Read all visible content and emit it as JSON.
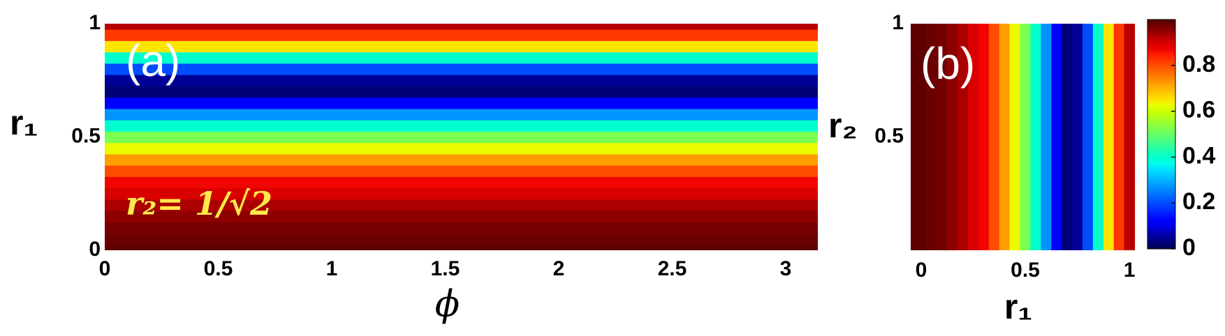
{
  "chart_data": [
    {
      "type": "heatmap",
      "x_label": "ϕ",
      "y_label": "r₁",
      "annotations": [
        "(a)",
        "r₂= 1/√2"
      ],
      "xlim": [
        0,
        3.1416
      ],
      "xticks": [
        0,
        0.5,
        1,
        1.5,
        2,
        2.5,
        3
      ],
      "ylim": [
        0,
        1
      ],
      "yticks": [
        0,
        0.5,
        1
      ],
      "y": [
        0,
        0.05,
        0.1,
        0.15,
        0.2,
        0.25,
        0.3,
        0.35,
        0.4,
        0.45,
        0.5,
        0.55,
        0.6,
        0.65,
        0.7,
        0.75,
        0.8,
        0.85,
        0.9,
        0.95,
        1
      ],
      "values": [
        0.99,
        0.98,
        0.97,
        0.95,
        0.93,
        0.9,
        0.87,
        0.8,
        0.72,
        0.63,
        0.52,
        0.4,
        0.27,
        0.12,
        0.03,
        0.05,
        0.2,
        0.4,
        0.65,
        0.82,
        0.92
      ],
      "colormap": "jet"
    },
    {
      "type": "heatmap",
      "x_label": "r₁",
      "y_label": "r₂",
      "annotations": [
        "(b)"
      ],
      "xlim": [
        -0.05,
        1.05
      ],
      "xticks": [
        0,
        0.5,
        1
      ],
      "ylim": [
        0,
        1
      ],
      "yticks": [
        0.5,
        1
      ],
      "x": [
        0,
        0.05,
        0.1,
        0.15,
        0.2,
        0.25,
        0.3,
        0.35,
        0.4,
        0.45,
        0.5,
        0.55,
        0.6,
        0.65,
        0.7,
        0.75,
        0.8,
        0.85,
        0.9,
        0.95,
        1
      ],
      "values": [
        0.99,
        0.98,
        0.97,
        0.95,
        0.93,
        0.9,
        0.87,
        0.8,
        0.72,
        0.63,
        0.52,
        0.4,
        0.27,
        0.12,
        0.03,
        0.05,
        0.2,
        0.4,
        0.65,
        0.82,
        0.92
      ],
      "colormap": "jet",
      "colorbar": {
        "lim": [
          0,
          1
        ],
        "ticks": [
          0,
          0.2,
          0.4,
          0.6,
          0.8
        ]
      }
    }
  ]
}
